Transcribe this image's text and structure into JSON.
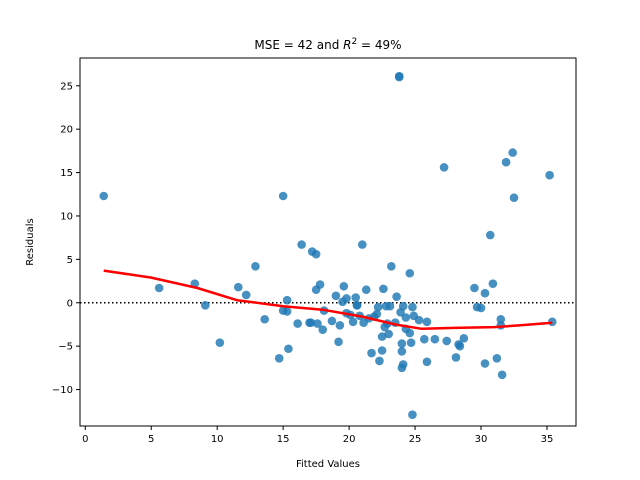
{
  "chart_data": {
    "type": "scatter",
    "title": "MSE = 42 and R² = 49%",
    "title_parts": {
      "prefix": "MSE = 42 and ",
      "var": "R",
      "sup": "2",
      "suffix": " = 49%"
    },
    "xlabel": "Fitted Values",
    "ylabel": "Residuals",
    "xlim": [
      -0.4,
      37.2
    ],
    "ylim": [
      -14.2,
      28.2
    ],
    "xticks": [
      0,
      5,
      10,
      15,
      20,
      25,
      30,
      35
    ],
    "yticks": [
      -10,
      -5,
      0,
      5,
      10,
      15,
      20,
      25
    ],
    "grid": false,
    "reference_line": {
      "y": 0,
      "style": "dotted",
      "color": "#000000"
    },
    "colors": {
      "points": "#1f77b4",
      "lowess": "#ff0000"
    },
    "series": [
      {
        "kind": "scatter",
        "points": [
          [
            1.4,
            12.3
          ],
          [
            5.6,
            1.7
          ],
          [
            8.3,
            2.2
          ],
          [
            9.1,
            -0.3
          ],
          [
            10.2,
            -4.6
          ],
          [
            11.6,
            1.8
          ],
          [
            12.2,
            0.9
          ],
          [
            12.9,
            4.2
          ],
          [
            13.6,
            -1.9
          ],
          [
            14.7,
            -6.4
          ],
          [
            15.0,
            12.3
          ],
          [
            15.0,
            -0.9
          ],
          [
            15.3,
            0.3
          ],
          [
            15.3,
            -1.0
          ],
          [
            15.4,
            -5.3
          ],
          [
            16.1,
            -2.4
          ],
          [
            16.4,
            6.7
          ],
          [
            17.0,
            -2.3
          ],
          [
            17.1,
            -2.3
          ],
          [
            17.2,
            5.9
          ],
          [
            17.5,
            5.6
          ],
          [
            17.5,
            1.5
          ],
          [
            17.8,
            2.1
          ],
          [
            17.6,
            -2.4
          ],
          [
            18.0,
            -3.1
          ],
          [
            18.1,
            -0.9
          ],
          [
            18.7,
            -2.1
          ],
          [
            19.0,
            0.8
          ],
          [
            19.2,
            -4.5
          ],
          [
            19.3,
            -2.6
          ],
          [
            19.5,
            0.1
          ],
          [
            19.6,
            1.9
          ],
          [
            19.8,
            0.5
          ],
          [
            19.8,
            -1.2
          ],
          [
            20.1,
            -1.4
          ],
          [
            20.3,
            -2.2
          ],
          [
            20.5,
            0.6
          ],
          [
            20.6,
            -0.3
          ],
          [
            20.6,
            -0.3
          ],
          [
            20.8,
            -1.5
          ],
          [
            21.0,
            6.7
          ],
          [
            21.1,
            -2.3
          ],
          [
            21.3,
            1.5
          ],
          [
            21.5,
            -1.8
          ],
          [
            21.7,
            -5.8
          ],
          [
            21.9,
            -1.6
          ],
          [
            22.1,
            -1.3
          ],
          [
            22.2,
            -0.5
          ],
          [
            22.3,
            -6.7
          ],
          [
            22.5,
            -3.9
          ],
          [
            22.5,
            -5.5
          ],
          [
            22.6,
            1.6
          ],
          [
            22.7,
            -2.8
          ],
          [
            22.8,
            -0.4
          ],
          [
            22.9,
            -2.4
          ],
          [
            23.0,
            -3.6
          ],
          [
            23.1,
            -0.4
          ],
          [
            23.2,
            4.2
          ],
          [
            23.5,
            -2.3
          ],
          [
            23.6,
            0.7
          ],
          [
            23.8,
            26.1
          ],
          [
            23.8,
            26.0
          ],
          [
            23.9,
            -1.1
          ],
          [
            24.0,
            -4.7
          ],
          [
            24.0,
            -5.6
          ],
          [
            24.1,
            -7.1
          ],
          [
            24.0,
            -7.5
          ],
          [
            24.1,
            -0.4
          ],
          [
            24.3,
            -1.7
          ],
          [
            24.3,
            -3.0
          ],
          [
            24.6,
            3.4
          ],
          [
            24.6,
            -3.5
          ],
          [
            24.7,
            -4.6
          ],
          [
            24.8,
            -12.9
          ],
          [
            24.8,
            -0.5
          ],
          [
            24.9,
            -1.5
          ],
          [
            25.3,
            -2.0
          ],
          [
            25.7,
            -4.2
          ],
          [
            25.9,
            -2.2
          ],
          [
            25.9,
            -6.8
          ],
          [
            26.5,
            -4.2
          ],
          [
            27.2,
            15.6
          ],
          [
            27.4,
            -4.4
          ],
          [
            28.1,
            -6.3
          ],
          [
            28.3,
            -4.8
          ],
          [
            28.4,
            -5.0
          ],
          [
            28.7,
            -4.1
          ],
          [
            29.5,
            1.7
          ],
          [
            29.7,
            -0.5
          ],
          [
            30.0,
            -0.6
          ],
          [
            30.3,
            1.1
          ],
          [
            30.3,
            -7.0
          ],
          [
            30.7,
            7.8
          ],
          [
            30.9,
            2.2
          ],
          [
            31.2,
            -6.4
          ],
          [
            31.5,
            -1.9
          ],
          [
            31.5,
            -2.6
          ],
          [
            31.6,
            -8.3
          ],
          [
            31.9,
            16.2
          ],
          [
            32.4,
            17.3
          ],
          [
            32.5,
            12.1
          ],
          [
            35.2,
            14.7
          ],
          [
            35.4,
            -2.2
          ]
        ]
      },
      {
        "kind": "lowess-line",
        "points": [
          [
            1.4,
            3.7
          ],
          [
            5.0,
            2.9
          ],
          [
            8.5,
            1.7
          ],
          [
            11.5,
            0.3
          ],
          [
            15.0,
            -0.4
          ],
          [
            18.0,
            -0.8
          ],
          [
            21.0,
            -1.6
          ],
          [
            23.5,
            -2.5
          ],
          [
            25.5,
            -3.0
          ],
          [
            28.0,
            -2.9
          ],
          [
            31.0,
            -2.8
          ],
          [
            33.0,
            -2.6
          ],
          [
            35.4,
            -2.3
          ]
        ]
      }
    ]
  }
}
